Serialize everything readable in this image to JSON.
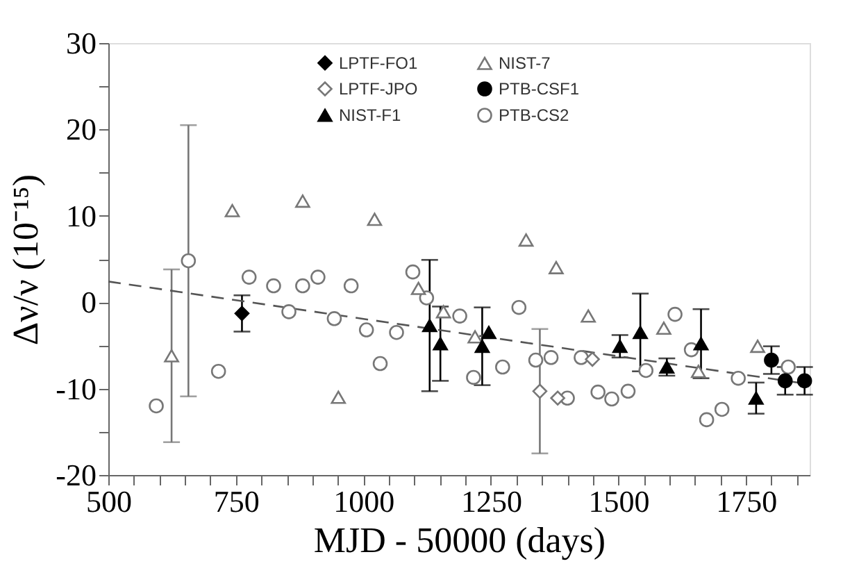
{
  "chart_data": {
    "type": "scatter",
    "xlabel": "MJD - 50000 (days)",
    "ylabel": "Δν/ν   (10⁻¹⁵)",
    "xlim": [
      500,
      1875
    ],
    "ylim": [
      -20,
      30
    ],
    "xticks": [
      500,
      {
        "value": 550,
        "label": null
      },
      {
        "value": 600,
        "label": null
      },
      {
        "value": 650,
        "label": null
      },
      {
        "value": 700,
        "label": null
      },
      750,
      {
        "value": 800,
        "label": null
      },
      {
        "value": 850,
        "label": null
      },
      {
        "value": 900,
        "label": null
      },
      {
        "value": 950,
        "label": null
      },
      1000,
      {
        "value": 1050,
        "label": null
      },
      {
        "value": 1100,
        "label": null
      },
      {
        "value": 1150,
        "label": null
      },
      {
        "value": 1200,
        "label": null
      },
      1250,
      {
        "value": 1300,
        "label": null
      },
      {
        "value": 1350,
        "label": null
      },
      {
        "value": 1400,
        "label": null
      },
      {
        "value": 1450,
        "label": null
      },
      1500,
      {
        "value": 1550,
        "label": null
      },
      {
        "value": 1600,
        "label": null
      },
      {
        "value": 1650,
        "label": null
      },
      {
        "value": 1700,
        "label": null
      },
      1750,
      {
        "value": 1800,
        "label": null
      },
      {
        "value": 1850,
        "label": null
      }
    ],
    "yticks": [
      -20,
      {
        "value": -15,
        "label": null
      },
      -10,
      {
        "value": -5,
        "label": null
      },
      0,
      {
        "value": 5,
        "label": null
      },
      10,
      {
        "value": 15,
        "label": null
      },
      20,
      {
        "value": 25,
        "label": null
      },
      30
    ],
    "grid": false,
    "legend": "top",
    "series": [
      {
        "name": "LPTF-FO1",
        "color": "#000000",
        "marker": "diamond",
        "x": [
          762
        ],
        "values": [
          -1.3
        ],
        "errors": [
          2.1
        ]
      },
      {
        "name": "LPTF-JPO",
        "color": "#777777",
        "marker": "diamond",
        "x": [
          1346,
          1381,
          1449
        ],
        "values": [
          -10.3,
          -11.1,
          -6.6
        ],
        "errors": [
          7.2,
          null,
          null
        ]
      },
      {
        "name": "NIST-F1",
        "color": "#000000",
        "marker": "triangle",
        "x": [
          1130,
          1151,
          1233,
          1246,
          1503,
          1543,
          1595,
          1662,
          1770
        ],
        "values": [
          -2.7,
          -4.8,
          -5.1,
          -3.5,
          -5.1,
          -3.5,
          -7.5,
          -4.8,
          -11.1
        ],
        "errors": [
          7.6,
          4.3,
          4.5,
          null,
          1.3,
          4.5,
          1,
          4,
          1.8
        ]
      },
      {
        "name": "NIST-7",
        "color": "#777777",
        "marker": "triangle",
        "x": [
          624,
          743,
          881,
          951,
          1022,
          1108,
          1157,
          1219,
          1319,
          1378,
          1441,
          1589,
          1657,
          1773
        ],
        "values": [
          -6.2,
          10.6,
          11.7,
          -11,
          9.6,
          1.6,
          -1.1,
          -4,
          7.2,
          4,
          -1.6,
          -3,
          -8,
          -5.1
        ],
        "errors": [
          10,
          null,
          null,
          null,
          null,
          null,
          null,
          null,
          null,
          null,
          null,
          null,
          null,
          null
        ]
      },
      {
        "name": "PTB-CSF1",
        "color": "#000000",
        "marker": "circle",
        "x": [
          1800,
          1827,
          1865
        ],
        "values": [
          -6.7,
          -9.1,
          -9.1
        ],
        "errors": [
          1.6,
          1.6,
          1.6
        ]
      },
      {
        "name": "PTB-CS2",
        "color": "#777777",
        "marker": "circle",
        "x": [
          594,
          657,
          716,
          776,
          824,
          854,
          881,
          911,
          943,
          976,
          1006,
          1033,
          1065,
          1097,
          1124,
          1189,
          1216,
          1273,
          1305,
          1338,
          1368,
          1400,
          1427,
          1460,
          1487,
          1519,
          1554,
          1611,
          1643,
          1673,
          1703,
          1735,
          1833
        ],
        "values": [
          -12,
          4.8,
          -8,
          2.9,
          1.9,
          -1.1,
          1.9,
          2.9,
          -1.9,
          1.9,
          -3.2,
          -7.1,
          -3.5,
          3.5,
          0.5,
          -1.6,
          -8.7,
          -7.5,
          -0.6,
          -6.7,
          -6.4,
          -11.1,
          -6.4,
          -10.4,
          -11.2,
          -10.3,
          -7.9,
          -1.4,
          -5.5,
          -13.6,
          -12.4,
          -8.8,
          -7.5
        ],
        "errors": [
          null,
          15.7,
          null,
          null,
          null,
          null,
          null,
          null,
          null,
          null,
          null,
          null,
          null,
          null,
          null,
          null,
          null,
          null,
          null,
          null,
          null,
          null,
          null,
          null,
          null,
          null,
          null,
          null,
          null,
          null,
          null,
          null,
          null
        ]
      },
      {
        "type": "line",
        "color": "#555555",
        "line_style": "dashed",
        "marker": "none",
        "x": [
          500,
          1875
        ],
        "values": [
          2.4,
          -9.5
        ]
      }
    ]
  }
}
